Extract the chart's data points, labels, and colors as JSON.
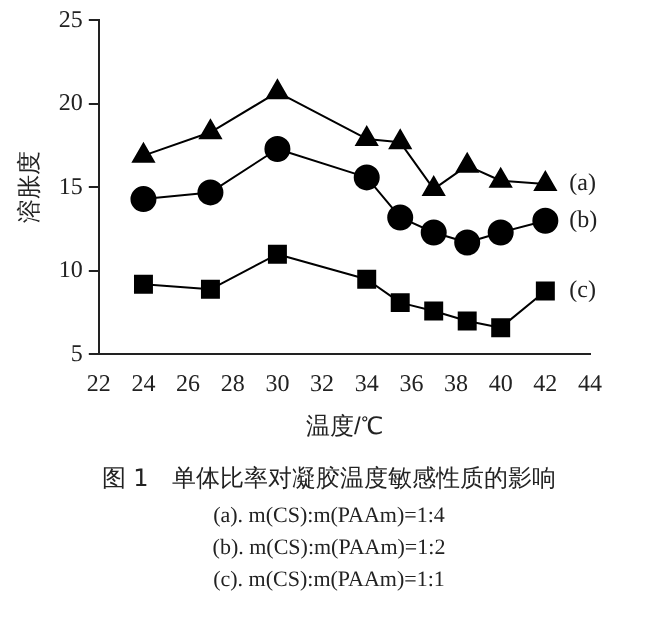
{
  "chart_data": {
    "type": "line",
    "title": "图 1　单体比率对凝胶温度敏感性质的影响",
    "xlabel": "温度/℃",
    "ylabel": "溶胀度",
    "x": [
      24,
      27,
      30,
      34,
      35.5,
      37,
      38.5,
      40,
      42
    ],
    "series": [
      {
        "name": "(a)",
        "color": "#000000",
        "marker": "triangle",
        "values": [
          16.9,
          18.3,
          20.7,
          17.9,
          17.7,
          14.9,
          16.3,
          15.4,
          15.2
        ]
      },
      {
        "name": "(b)",
        "color": "#000000",
        "marker": "circle",
        "values": [
          14.3,
          14.7,
          17.3,
          15.6,
          13.2,
          12.3,
          11.7,
          12.3,
          13.0
        ]
      },
      {
        "name": "(c)",
        "color": "#000000",
        "marker": "square",
        "values": [
          9.2,
          8.9,
          11.0,
          9.5,
          8.1,
          7.6,
          7.0,
          6.6,
          8.8
        ]
      }
    ],
    "xlim": [
      22,
      44
    ],
    "xticks": [
      22,
      24,
      26,
      28,
      30,
      32,
      34,
      36,
      38,
      40,
      42,
      44
    ],
    "ylim": [
      5,
      25
    ],
    "yticks": [
      5,
      10,
      15,
      20,
      25
    ],
    "grid": false,
    "legend": false,
    "annotations": [
      "(a). m(CS):m(PAAm)=1:4",
      "(b). m(CS):m(PAAm)=1:2",
      "(c). m(CS):m(PAAm)=1:1"
    ]
  }
}
